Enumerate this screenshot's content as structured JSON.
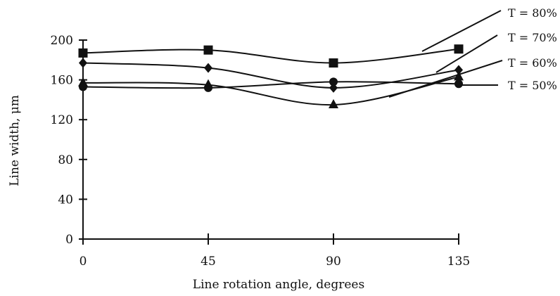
{
  "chart_data": {
    "type": "line",
    "xlabel": "Line rotation angle, degrees",
    "ylabel": "Line width, μm",
    "x": [
      0,
      45,
      90,
      135
    ],
    "xticks": [
      "0",
      "45",
      "90",
      "135"
    ],
    "yticks": [
      "0",
      "40",
      "80",
      "120",
      "160",
      "200"
    ],
    "xlim": [
      0,
      135
    ],
    "ylim": [
      0,
      200
    ],
    "grid": false,
    "legend_placement": "right",
    "series": [
      {
        "name": "T = 80%",
        "marker": "square",
        "values": [
          187,
          190,
          177,
          191
        ]
      },
      {
        "name": "T = 70%",
        "marker": "diamond",
        "values": [
          177,
          172,
          152,
          170
        ]
      },
      {
        "name": "T = 60%",
        "marker": "triangle",
        "values": [
          157,
          155,
          135,
          163
        ]
      },
      {
        "name": "T = 50%",
        "marker": "circle",
        "values": [
          153,
          152,
          158,
          156
        ]
      }
    ],
    "colors": {
      "line": "#111111",
      "background": "#ffffff"
    }
  }
}
